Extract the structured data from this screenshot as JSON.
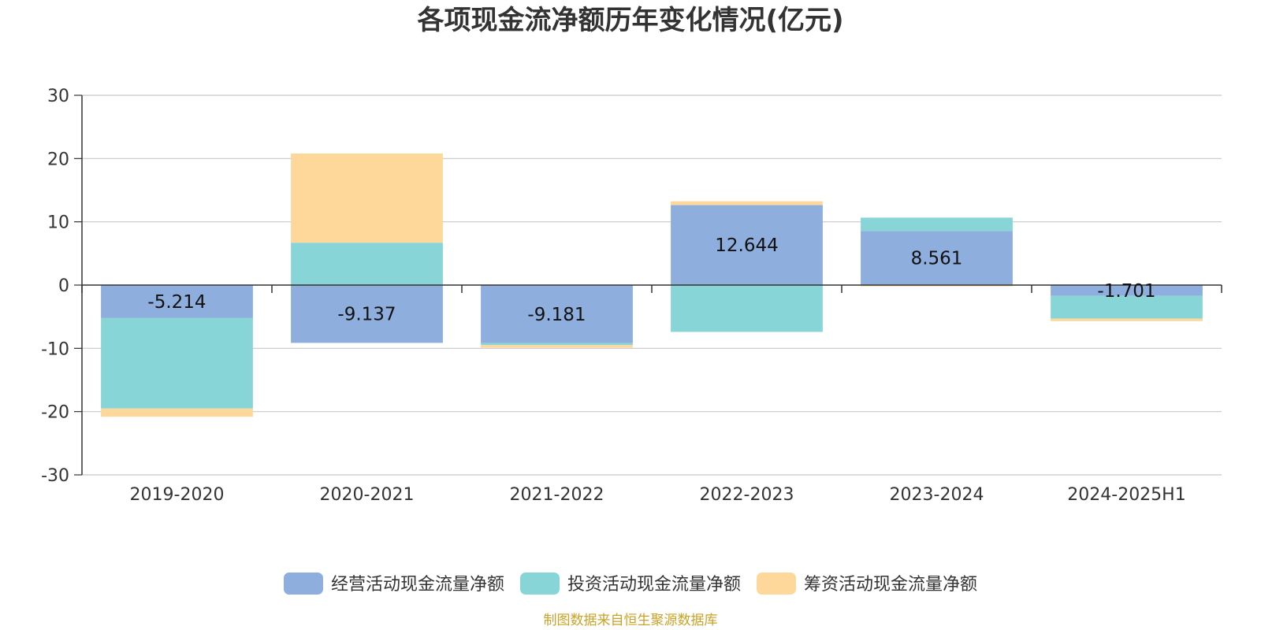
{
  "chart_data": {
    "type": "bar",
    "stacked": true,
    "title": "各项现金流净额历年变化情况(亿元)",
    "categories": [
      "2019-2020",
      "2020-2021",
      "2021-2022",
      "2022-2023",
      "2023-2024",
      "2024-2025H1"
    ],
    "ylim": [
      -30,
      30
    ],
    "yticks": [
      30,
      20,
      10,
      0,
      -10,
      -20,
      -30
    ],
    "ytick_labels": [
      "30",
      "20",
      "10",
      "0",
      "-10",
      "-20",
      "-30"
    ],
    "grid": true,
    "legend_position": "bottom",
    "series": [
      {
        "name": "经营活动现金流量净额",
        "color": "#8eaedd",
        "values": [
          -5.214,
          -9.137,
          -9.181,
          12.644,
          8.561,
          -1.701
        ],
        "data_labels": [
          "-5.214",
          "-9.137",
          "-9.181",
          "12.644",
          "8.561",
          "-1.701"
        ]
      },
      {
        "name": "投资活动现金流量净额",
        "color": "#88d5d8",
        "values": [
          -14.3,
          6.7,
          -0.3,
          -7.4,
          2.1,
          -3.6
        ]
      },
      {
        "name": "筹资活动现金流量净额",
        "color": "#fed89a",
        "values": [
          -1.3,
          14.1,
          -0.4,
          0.6,
          -0.2,
          -0.4
        ]
      }
    ]
  },
  "source": {
    "text": "制图数据来自恒生聚源数据库",
    "color": "#c9a227"
  }
}
